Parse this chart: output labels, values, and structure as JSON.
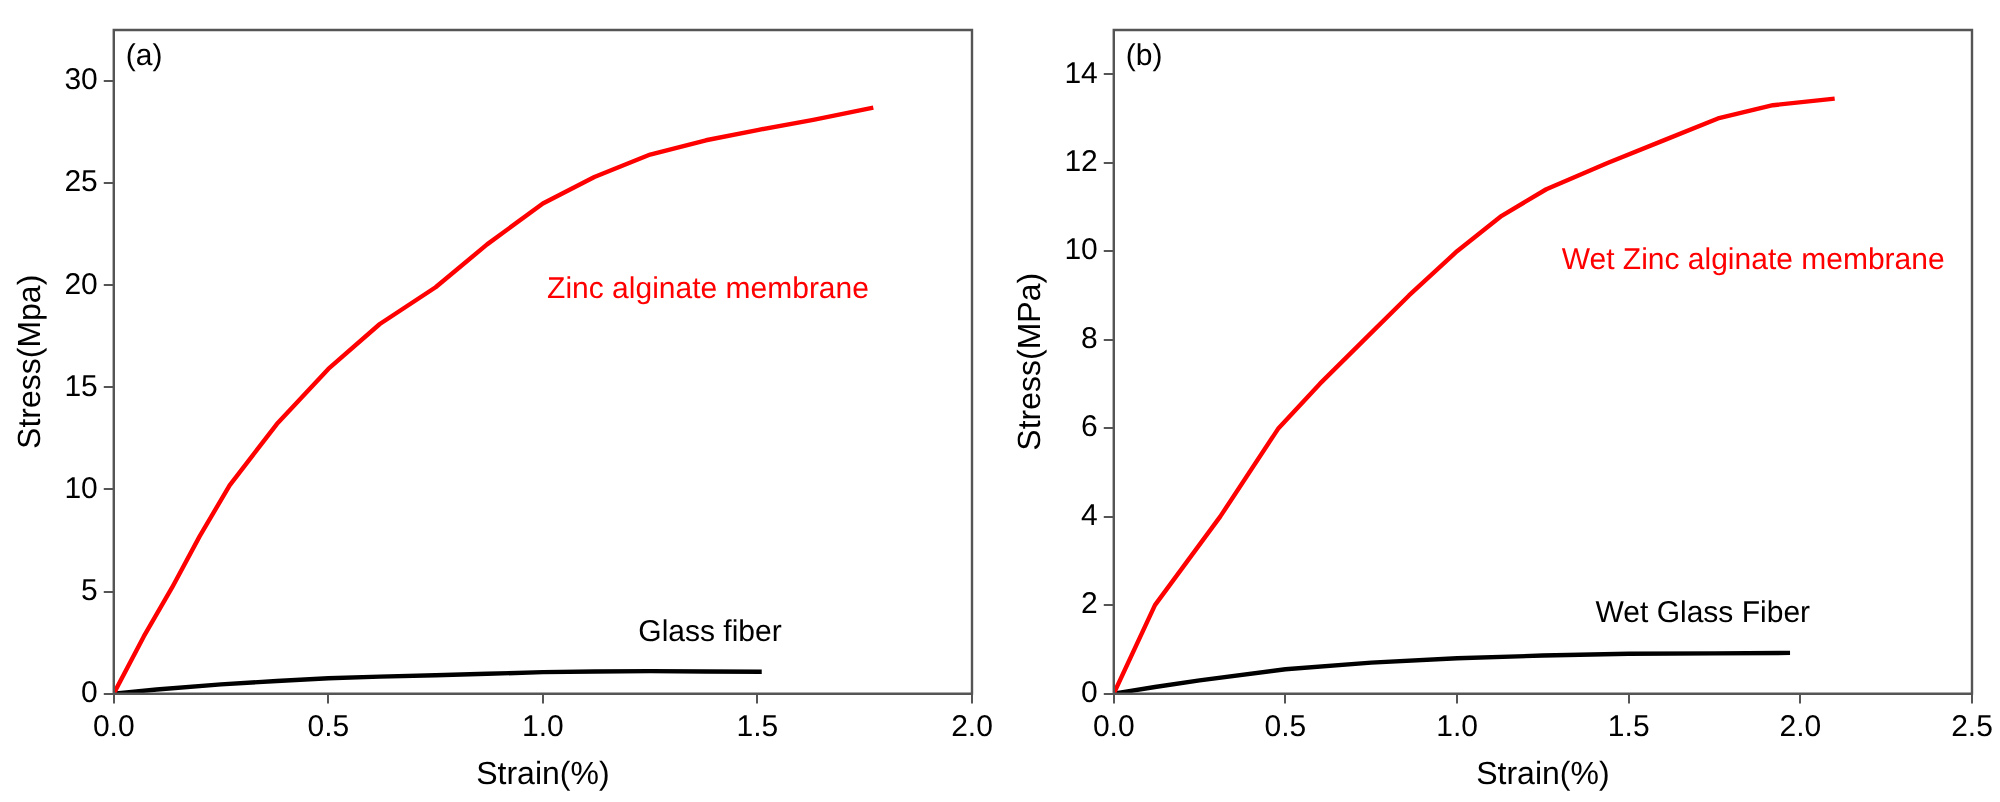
{
  "chart_data": [
    {
      "type": "line",
      "xlabel": "Strain(%)",
      "ylabel": "Stress(Mpa)",
      "annotations": [
        "(a)"
      ],
      "xlim": [
        0,
        2.0
      ],
      "xticks": [
        {
          "value": 0,
          "label": "0.0"
        },
        0.5,
        {
          "value": 1,
          "label": "1.0"
        },
        1.5,
        {
          "value": 2,
          "label": "2.0"
        }
      ],
      "ylim": [
        0,
        32.5
      ],
      "yticks": [
        0,
        5,
        10,
        15,
        20,
        25,
        30
      ],
      "grid": false,
      "legend": false,
      "marker": "none",
      "line_style": "solid",
      "series": [
        {
          "name": "Zinc alginate membrane",
          "color": "#ff0000",
          "x": [
            0,
            0.07,
            0.136,
            0.2,
            0.27,
            0.38,
            0.5,
            0.62,
            0.75,
            0.87,
            1.0,
            1.12,
            1.25,
            1.38,
            1.5,
            1.63,
            1.77
          ],
          "values": [
            0,
            2.8,
            5.2,
            7.7,
            10.2,
            13.2,
            15.9,
            18.1,
            19.9,
            22.0,
            24.0,
            25.3,
            26.4,
            27.1,
            27.6,
            28.1,
            28.7
          ]
        },
        {
          "name": "Glass fiber",
          "color": "#000000",
          "x": [
            0,
            0.1,
            0.25,
            0.38,
            0.5,
            0.62,
            0.75,
            0.87,
            1.0,
            1.12,
            1.25,
            1.38,
            1.51
          ],
          "values": [
            0,
            0.2,
            0.45,
            0.62,
            0.75,
            0.83,
            0.9,
            0.97,
            1.05,
            1.08,
            1.1,
            1.08,
            1.07
          ]
        }
      ]
    },
    {
      "type": "line",
      "xlabel": "Strain(%)",
      "ylabel": "Stress(MPa)",
      "annotations": [
        "(b)"
      ],
      "xlim": [
        0,
        2.5
      ],
      "xticks": [
        {
          "value": 0,
          "label": "0.0"
        },
        0.5,
        {
          "value": 1,
          "label": "1.0"
        },
        1.5,
        {
          "value": 2,
          "label": "2.0"
        },
        2.5
      ],
      "ylim": [
        0,
        15
      ],
      "yticks": [
        0,
        2,
        4,
        6,
        8,
        10,
        12,
        14
      ],
      "grid": false,
      "legend": false,
      "marker": "none",
      "line_style": "solid",
      "series": [
        {
          "name": "Wet Zinc alginate membrane",
          "color": "#ff0000",
          "x": [
            0,
            0.12,
            0.31,
            0.48,
            0.6,
            0.73,
            0.86,
            1.0,
            1.13,
            1.26,
            1.44,
            1.6,
            1.76,
            1.92,
            2.1
          ],
          "values": [
            0,
            2.0,
            4.0,
            6.0,
            7.0,
            8.0,
            9.0,
            10.0,
            10.8,
            11.4,
            12.0,
            12.5,
            13.0,
            13.3,
            13.45
          ]
        },
        {
          "name": "Wet Glass Fiber",
          "color": "#000000",
          "x": [
            0,
            0.12,
            0.25,
            0.5,
            0.75,
            1.0,
            1.25,
            1.5,
            1.75,
            1.97
          ],
          "values": [
            0,
            0.15,
            0.3,
            0.55,
            0.7,
            0.8,
            0.86,
            0.9,
            0.91,
            0.92
          ]
        }
      ]
    }
  ]
}
